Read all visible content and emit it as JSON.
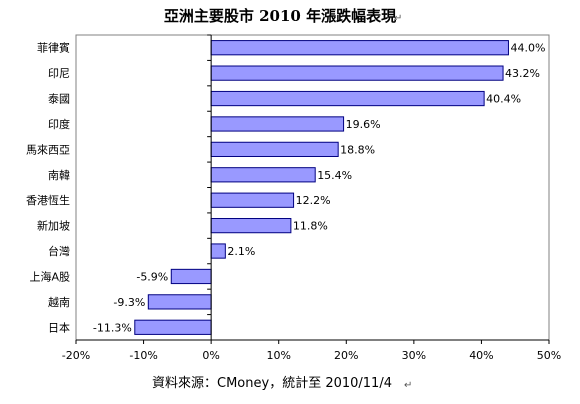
{
  "chart_data": {
    "type": "bar",
    "orientation": "horizontal",
    "title": "亞洲主要股市 2010 年漲跌幅表現",
    "categories": [
      "菲律賓",
      "印尼",
      "泰國",
      "印度",
      "馬來西亞",
      "南韓",
      "香港恆生",
      "新加坡",
      "台灣",
      "上海A股",
      "越南",
      "日本"
    ],
    "values": [
      44.0,
      43.2,
      40.4,
      19.6,
      18.8,
      15.4,
      12.2,
      11.8,
      2.1,
      -5.9,
      -9.3,
      -11.3
    ],
    "value_labels": [
      "44.0%",
      "43.2%",
      "40.4%",
      "19.6%",
      "18.8%",
      "15.4%",
      "12.2%",
      "11.8%",
      "2.1%",
      "-5.9%",
      "-9.3%",
      "-11.3%"
    ],
    "xlim": [
      -20,
      50
    ],
    "x_ticks": [
      -20,
      -10,
      0,
      10,
      20,
      30,
      40,
      50
    ],
    "x_tick_labels": [
      "-20%",
      "-10%",
      "0%",
      "10%",
      "20%",
      "30%",
      "40%",
      "50%"
    ],
    "xlabel": "",
    "ylabel": "",
    "grid": false,
    "legend": "none",
    "bar_color": "#9999ff",
    "bar_border_color": "#000080",
    "source": "資料來源：CMoney，統計至 2010/11/4"
  }
}
